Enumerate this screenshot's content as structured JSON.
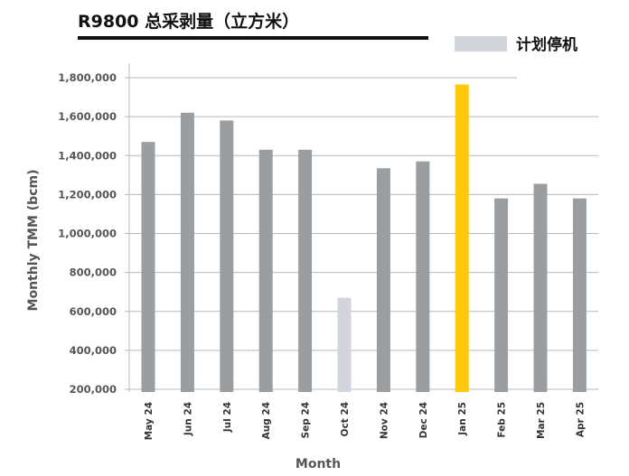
{
  "colors": {
    "normal": "#9b9ea1",
    "planned_shutdown": "#d2d5dc",
    "highlight": "#ffc80a",
    "grid": "#b8b8b8",
    "title_rule": "#111111"
  },
  "chart_data": {
    "type": "bar",
    "title": "R9800 总采剥量（立方米）",
    "xlabel": "Month",
    "ylabel": "Monthly TMM (bcm)",
    "ylim": [
      200000,
      1900000
    ],
    "yticks": [
      200000,
      400000,
      600000,
      800000,
      1000000,
      1200000,
      1400000,
      1600000,
      1800000
    ],
    "ytick_labels": [
      "200,000",
      "400,000",
      "600,000",
      "800,000",
      "1,000,000",
      "1,200,000",
      "1,400,000",
      "1,600,000",
      "1,800,000"
    ],
    "grid": true,
    "legend": {
      "position": "top-right",
      "entries": [
        {
          "label": "计划停机",
          "color_key": "planned_shutdown"
        }
      ]
    },
    "categories": [
      "May 24",
      "Jun 24",
      "Jul 24",
      "Aug 24",
      "Sep 24",
      "Oct 24",
      "Nov 24",
      "Dec 24",
      "Jan 25",
      "Feb 25",
      "Mar 25",
      "Apr 25"
    ],
    "values": [
      1470000,
      1620000,
      1580000,
      1430000,
      1430000,
      670000,
      1335000,
      1370000,
      1765000,
      1180000,
      1255000,
      1180000
    ],
    "bar_color_keys": [
      "normal",
      "normal",
      "normal",
      "normal",
      "normal",
      "planned_shutdown",
      "normal",
      "normal",
      "highlight",
      "normal",
      "normal",
      "normal"
    ]
  }
}
